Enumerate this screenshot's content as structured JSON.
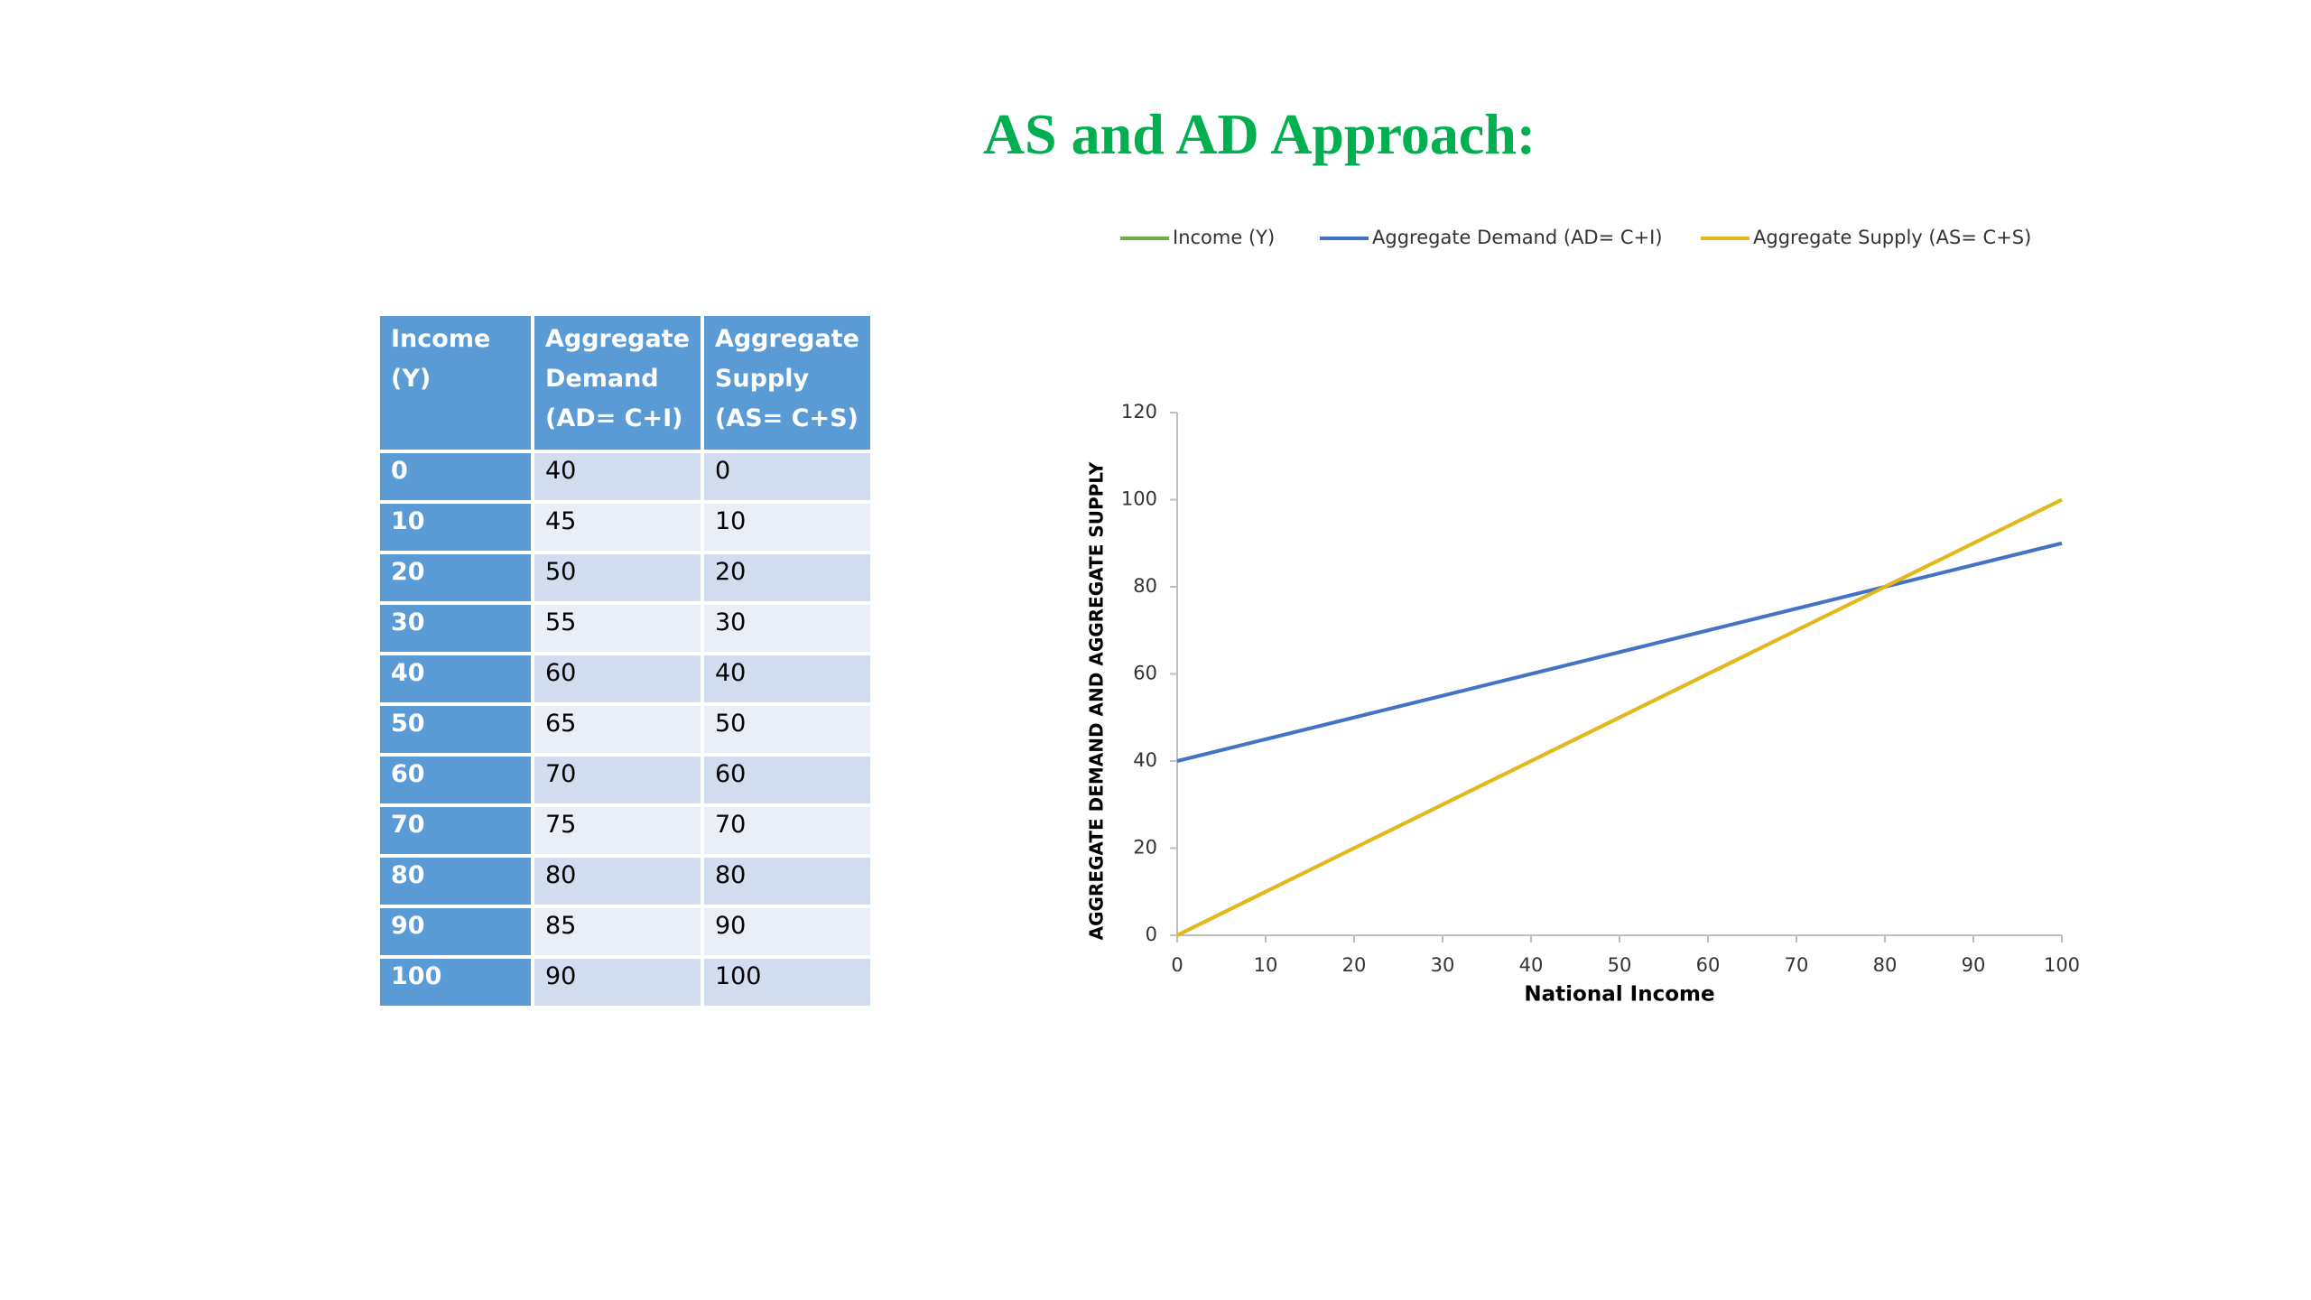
{
  "title": "AS and AD Approach:",
  "table": {
    "header": [
      "Income (Y)",
      "Aggregate Demand (AD= C+I)",
      "Aggregate Supply (AS= C+S)"
    ],
    "rows": [
      [
        0,
        40,
        0
      ],
      [
        10,
        45,
        10
      ],
      [
        20,
        50,
        20
      ],
      [
        30,
        55,
        30
      ],
      [
        40,
        60,
        40
      ],
      [
        50,
        65,
        50
      ],
      [
        60,
        70,
        60
      ],
      [
        70,
        75,
        70
      ],
      [
        80,
        80,
        80
      ],
      [
        90,
        85,
        90
      ],
      [
        100,
        90,
        100
      ]
    ]
  },
  "chart_data": {
    "type": "line",
    "xlabel": "National Income",
    "ylabel": "AGGREGATE DEMAND AND AGGREGATE SUPPLY",
    "x": [
      0,
      10,
      20,
      30,
      40,
      50,
      60,
      70,
      80,
      90,
      100
    ],
    "series": [
      {
        "name": "Income (Y)",
        "color": "#70ad47",
        "values": [
          0,
          10,
          20,
          30,
          40,
          50,
          60,
          70,
          80,
          90,
          100
        ]
      },
      {
        "name": "Aggregate Demand (AD= C+I)",
        "color": "#4472c4",
        "values": [
          40,
          45,
          50,
          55,
          60,
          65,
          70,
          75,
          80,
          85,
          90
        ]
      },
      {
        "name": "Aggregate Supply (AS= C+S)",
        "color": "#e6b817",
        "values": [
          0,
          10,
          20,
          30,
          40,
          50,
          60,
          70,
          80,
          90,
          100
        ]
      }
    ],
    "xlim": [
      0,
      100
    ],
    "xticks": [
      0,
      10,
      20,
      30,
      40,
      50,
      60,
      70,
      80,
      90,
      100
    ],
    "ylim": [
      0,
      120
    ],
    "yticks": [
      0,
      20,
      40,
      60,
      80,
      100,
      120
    ],
    "legend": "top"
  }
}
